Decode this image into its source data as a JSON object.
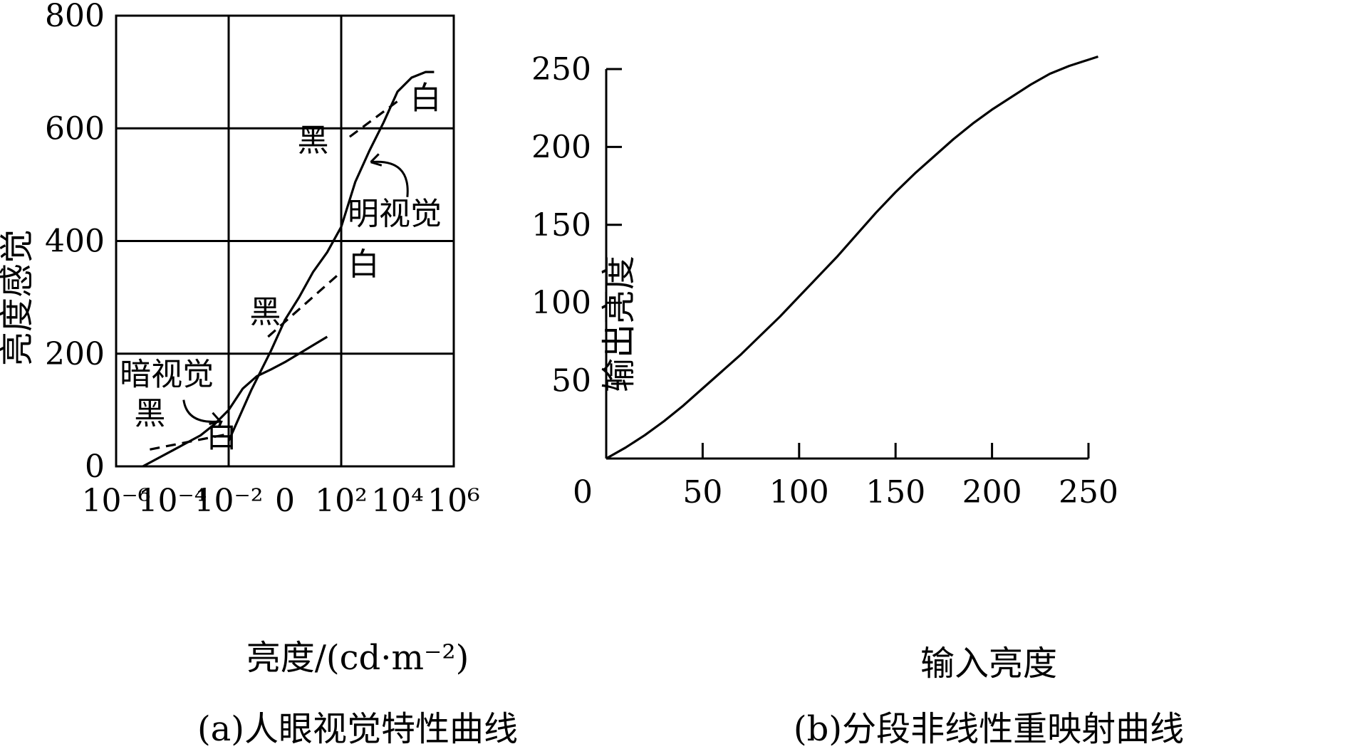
{
  "chart_data": [
    {
      "type": "line",
      "caption": "(a)人眼视觉特性曲线",
      "xlabel": "亮度/(cd·m⁻²)",
      "ylabel": "亮度感觉",
      "x_scale": "log",
      "xlim": [
        -6,
        6
      ],
      "ylim": [
        0,
        800
      ],
      "grid": true,
      "x_ticks": [
        {
          "value": -6,
          "label": "10⁻⁶"
        },
        {
          "value": -4,
          "label": "10⁻⁴"
        },
        {
          "value": -2,
          "label": "10⁻²"
        },
        {
          "value": 0,
          "label": "0"
        },
        {
          "value": 2,
          "label": "10²"
        },
        {
          "value": 4,
          "label": "10⁴"
        },
        {
          "value": 6,
          "label": "10⁶"
        }
      ],
      "y_ticks": [
        0,
        200,
        400,
        600,
        800
      ],
      "series": [
        {
          "name": "暗视觉",
          "style": "solid",
          "x": [
            -5.05,
            -4,
            -3,
            -2.5,
            -2,
            -1.5,
            -1,
            -0.5,
            0,
            0.5,
            1,
            1.5
          ],
          "y": [
            0,
            28,
            55,
            75,
            100,
            138,
            160,
            172,
            185,
            200,
            215,
            230
          ]
        },
        {
          "name": "明视觉",
          "style": "solid",
          "x": [
            -2,
            -1.2,
            -0.5,
            0,
            0.5,
            1,
            1.5,
            2,
            2.5,
            3,
            3.5,
            4,
            4.5,
            5,
            5.3
          ],
          "y": [
            45,
            135,
            205,
            260,
            300,
            345,
            380,
            425,
            505,
            560,
            610,
            665,
            690,
            700,
            700
          ]
        },
        {
          "name": "",
          "style": "dashed",
          "x": [
            -4.8,
            -2.05
          ],
          "y": [
            30,
            57
          ]
        },
        {
          "name": "",
          "style": "dashed",
          "x": [
            -0.6,
            2
          ],
          "y": [
            230,
            345
          ]
        },
        {
          "name": "",
          "style": "dashed",
          "x": [
            2.3,
            4
          ],
          "y": [
            585,
            648
          ]
        }
      ],
      "annotations": [
        {
          "text": "暗视觉",
          "x": -4.2,
          "y": 145
        },
        {
          "text": "黑",
          "x": -4.8,
          "y": 75
        },
        {
          "text": "白",
          "x": -2.25,
          "y": 35
        },
        {
          "text": "黑",
          "x": -0.7,
          "y": 255
        },
        {
          "text": "白",
          "x": 2.8,
          "y": 340
        },
        {
          "text": "黑",
          "x": 1.0,
          "y": 560
        },
        {
          "text": "白",
          "x": 5.0,
          "y": 635
        },
        {
          "text": "明视觉",
          "x": 3.9,
          "y": 430
        }
      ]
    },
    {
      "type": "line",
      "caption": "(b)分段非线性重映射曲线",
      "xlabel": "输入亮度",
      "ylabel": "输出亮度",
      "xlim": [
        0,
        250
      ],
      "ylim": [
        0,
        250
      ],
      "x_ticks": [
        0,
        50,
        100,
        150,
        200,
        250
      ],
      "y_ticks": [
        50,
        100,
        150,
        200,
        250
      ],
      "grid": false,
      "series": [
        {
          "name": "",
          "x": [
            0,
            10,
            20,
            30,
            40,
            50,
            60,
            70,
            80,
            90,
            100,
            110,
            120,
            130,
            140,
            150,
            160,
            170,
            180,
            190,
            200,
            210,
            220,
            230,
            240,
            250,
            255
          ],
          "y": [
            0,
            7,
            15,
            24,
            34,
            45,
            56,
            67,
            79,
            91,
            104,
            117,
            130,
            144,
            158,
            171,
            183,
            194,
            205,
            215,
            224,
            232,
            240,
            247,
            252,
            256,
            258
          ]
        }
      ]
    }
  ]
}
